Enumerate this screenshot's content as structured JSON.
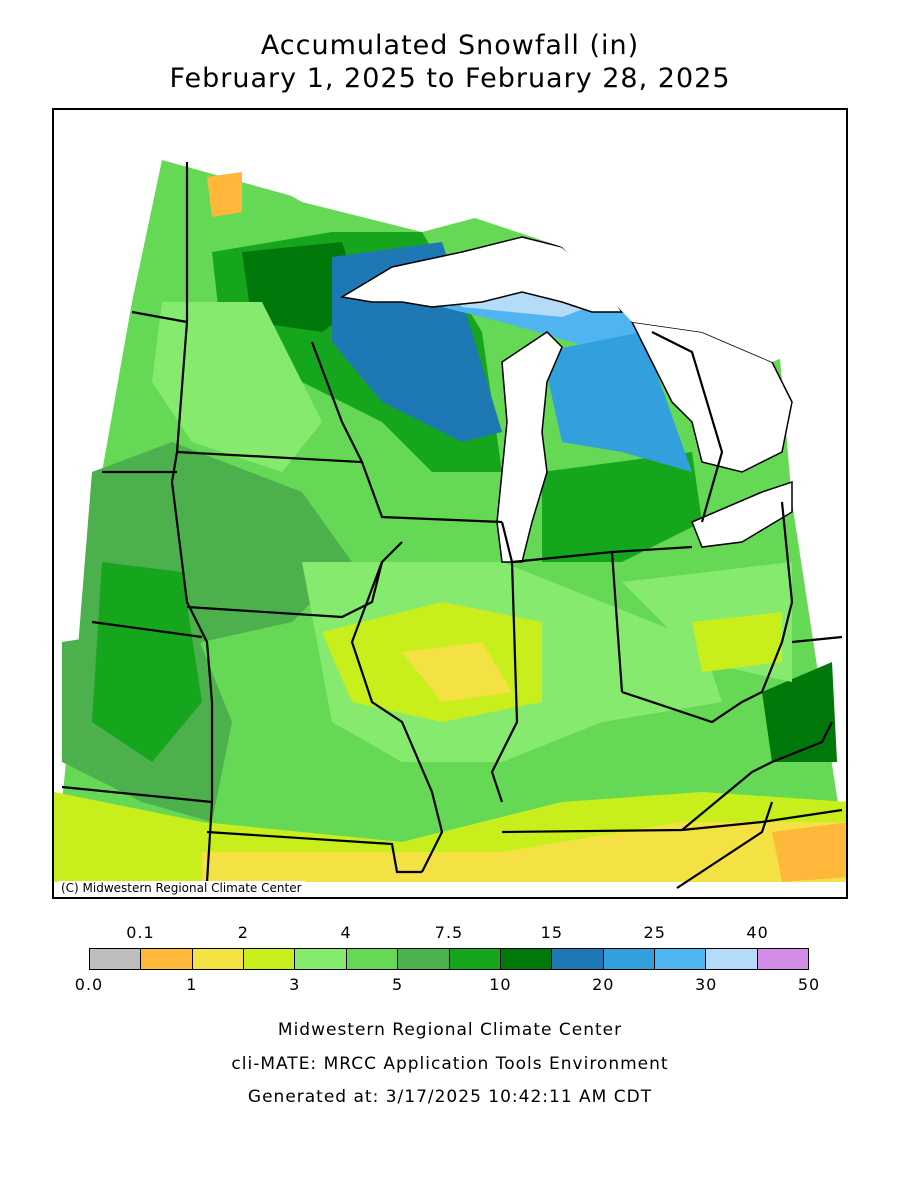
{
  "title": {
    "line1": "Accumulated Snowfall (in)",
    "line2": "February 1, 2025 to February 28, 2025"
  },
  "map": {
    "credit": "(C) Midwestern Regional Climate Center",
    "background_color": "#6ac943"
  },
  "legend": {
    "top_labels": [
      "0.1",
      "2",
      "4",
      "7.5",
      "15",
      "25",
      "40"
    ],
    "bottom_labels": [
      "0.0",
      "1",
      "3",
      "5",
      "10",
      "20",
      "30",
      "50"
    ],
    "colors": [
      "#bebebe",
      "#ffb83a",
      "#f4e245",
      "#c8ef1c",
      "#86ea6e",
      "#65d956",
      "#4cb14c",
      "#16a61e",
      "#00780a",
      "#1e78b4",
      "#32a0dc",
      "#50b4f0",
      "#b4dcf8",
      "#d28ce6"
    ]
  },
  "footer": {
    "line1": "Midwestern Regional Climate Center",
    "line2": "cli-MATE: MRCC Application Tools Environment",
    "line3": "Generated at: 3/17/2025 10:42:11 AM CDT"
  }
}
